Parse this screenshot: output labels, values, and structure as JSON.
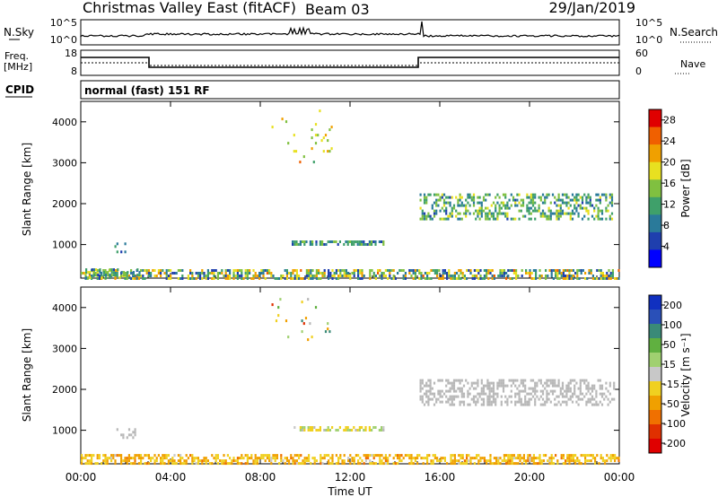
{
  "header": {
    "station": "Christmas Valley East (fitACF)",
    "beam": "Beam 03",
    "date": "29/Jan/2019"
  },
  "aux_panels": {
    "nsky_label": "N.Sky",
    "nsky_ticks": [
      "10^5",
      "10^0"
    ],
    "nsearch_label": "N.Search",
    "nsearch_ticks": [
      "10^5",
      "10^0"
    ],
    "freq_label_line1": "Freq.",
    "freq_label_line2": "[MHz]",
    "freq_ticks": [
      "18",
      "8"
    ],
    "nave_label": "Nave",
    "nave_ticks": [
      "60",
      "0"
    ],
    "cpid_label": "CPID",
    "cpid_value": "normal (fast) 151 RF"
  },
  "colors": {
    "power_scale": [
      "#0000ff",
      "#1f3fae",
      "#2a7a9a",
      "#3fa06a",
      "#80c040",
      "#e8e020",
      "#f0a000",
      "#f06000",
      "#e00000"
    ],
    "velocity_scale": [
      "#1030c0",
      "#2a50b8",
      "#3a8a78",
      "#60b040",
      "#a0d070",
      "#c8c8c8",
      "#f0d020",
      "#f0a000",
      "#f07000",
      "#e03000",
      "#e00000"
    ],
    "ground_scatter": "#b8b8b8"
  },
  "chart_data": [
    {
      "type": "heatmap",
      "name": "power",
      "ylabel": "Slant Range [km]",
      "xlabel": "",
      "x_tick_labels": [
        "00:00",
        "04:00",
        "08:00",
        "12:00",
        "16:00",
        "20:00",
        "00:00"
      ],
      "xlim_hours": [
        0,
        24
      ],
      "y_tick_labels": [
        "1000",
        "2000",
        "3000",
        "4000"
      ],
      "ylim": [
        180,
        4500
      ],
      "colorbar": {
        "label": "Power [dB]",
        "ticks": [
          "4",
          "8",
          "12",
          "16",
          "20",
          "24",
          "28"
        ],
        "range": [
          0,
          30
        ]
      },
      "regions": [
        {
          "x": [
            0.0,
            24.0
          ],
          "y": [
            180,
            400
          ],
          "value_range": [
            4,
            24
          ],
          "density": 0.55
        },
        {
          "x": [
            0.2,
            2.6
          ],
          "y": [
            200,
            420
          ],
          "value_range": [
            6,
            20
          ],
          "density": 0.5
        },
        {
          "x": [
            1.5,
            2.0
          ],
          "y": [
            800,
            1050
          ],
          "value_range": [
            4,
            12
          ],
          "density": 0.3
        },
        {
          "x": [
            9.4,
            13.5
          ],
          "y": [
            980,
            1100
          ],
          "value_range": [
            4,
            16
          ],
          "density": 0.6
        },
        {
          "x": [
            15.1,
            23.8
          ],
          "y": [
            1600,
            2250
          ],
          "value_range": [
            6,
            18
          ],
          "density": 0.45
        },
        {
          "x": [
            8.5,
            11.3
          ],
          "y": [
            3000,
            4300
          ],
          "value_range": [
            12,
            24
          ],
          "density": 0.04
        }
      ]
    },
    {
      "type": "heatmap",
      "name": "velocity",
      "ylabel": "Slant Range [km]",
      "xlabel": "Time UT",
      "x_tick_labels": [
        "00:00",
        "04:00",
        "08:00",
        "12:00",
        "16:00",
        "20:00",
        "00:00"
      ],
      "xlim_hours": [
        0,
        24
      ],
      "y_tick_labels": [
        "1000",
        "2000",
        "3000",
        "4000"
      ],
      "ylim": [
        180,
        4500
      ],
      "colorbar": {
        "label": "Velocity [m s⁻¹]",
        "ticks": [
          "200",
          "100",
          "50",
          "15",
          "-15",
          "-50",
          "-100",
          "-200"
        ],
        "range": [
          -250,
          250
        ]
      },
      "regions": [
        {
          "x": [
            0.0,
            24.0
          ],
          "y": [
            180,
            420
          ],
          "value_range": [
            -120,
            -20
          ],
          "density": 0.55
        },
        {
          "x": [
            1.5,
            2.4
          ],
          "y": [
            800,
            1050
          ],
          "value_range": [
            -10,
            10
          ],
          "density": 0.3
        },
        {
          "x": [
            9.4,
            13.5
          ],
          "y": [
            980,
            1100
          ],
          "value_range": [
            -60,
            60
          ],
          "density": 0.6
        },
        {
          "x": [
            15.1,
            23.8
          ],
          "y": [
            1600,
            2250
          ],
          "value_range": [
            -12,
            12
          ],
          "density": 0.45
        },
        {
          "x": [
            8.5,
            11.3
          ],
          "y": [
            3000,
            4300
          ],
          "value_range": [
            -200,
            150
          ],
          "density": 0.04
        }
      ]
    }
  ]
}
